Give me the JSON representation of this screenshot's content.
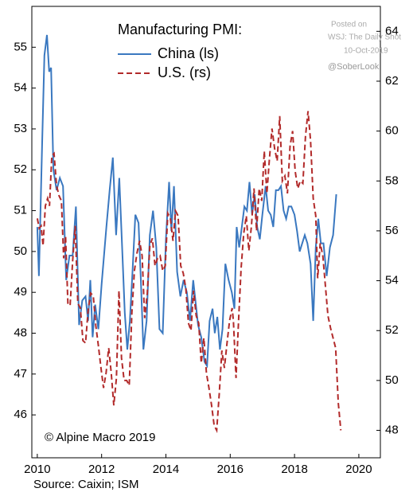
{
  "chart_data": {
    "type": "line",
    "title": "Manufacturing PMI:",
    "annotations": {
      "copyright": "© Alpine Macro 2019",
      "source": "Source: Caixin; ISM",
      "posted": "Posted on",
      "outlet": "WSJ: The Daily Shot",
      "date": "10-Oct-2019",
      "handle": "@SoberLook"
    },
    "xlim": [
      2009.83,
      2020.67
    ],
    "xticks": [
      2010,
      2012,
      2014,
      2016,
      2018,
      2020
    ],
    "ylim": [
      44.95,
      56.0
    ],
    "yticks": [
      46,
      47,
      48,
      49,
      50,
      51,
      52,
      53,
      54,
      55
    ],
    "y2lim": [
      46.9,
      65.0
    ],
    "y2ticks": [
      48,
      50,
      52,
      54,
      56,
      58,
      60,
      62,
      64
    ],
    "series": [
      {
        "name": "China (ls)",
        "color": "#3a78c0",
        "dash": false,
        "x": [
          2010.0,
          2010.05,
          2010.15,
          2010.22,
          2010.3,
          2010.37,
          2010.43,
          2010.5,
          2010.6,
          2010.7,
          2010.8,
          2010.9,
          2011.0,
          2011.1,
          2011.2,
          2011.3,
          2011.4,
          2011.5,
          2011.58,
          2011.65,
          2011.72,
          2011.8,
          2011.9,
          2012.0,
          2012.15,
          2012.25,
          2012.35,
          2012.45,
          2012.55,
          2012.65,
          2012.72,
          2012.8,
          2012.88,
          2012.96,
          2013.05,
          2013.15,
          2013.22,
          2013.3,
          2013.4,
          2013.5,
          2013.6,
          2013.7,
          2013.8,
          2013.9,
          2014.0,
          2014.1,
          2014.17,
          2014.25,
          2014.35,
          2014.45,
          2014.55,
          2014.65,
          2014.75,
          2014.85,
          2015.0,
          2015.1,
          2015.2,
          2015.28,
          2015.36,
          2015.45,
          2015.52,
          2015.6,
          2015.68,
          2015.76,
          2015.85,
          2015.95,
          2016.05,
          2016.13,
          2016.2,
          2016.28,
          2016.36,
          2016.44,
          2016.52,
          2016.6,
          2016.68,
          2016.76,
          2016.84,
          2016.92,
          2017.0,
          2017.1,
          2017.18,
          2017.26,
          2017.34,
          2017.42,
          2017.5,
          2017.58,
          2017.66,
          2017.74,
          2017.82,
          2017.9,
          2018.0,
          2018.08,
          2018.16,
          2018.24,
          2018.32,
          2018.4,
          2018.5,
          2018.58,
          2018.66,
          2018.74,
          2018.82,
          2018.9,
          2019.0,
          2019.1,
          2019.2,
          2019.3
        ],
        "values": [
          50.6,
          49.4,
          52.6,
          54.8,
          55.3,
          54.4,
          54.5,
          52.0,
          51.5,
          51.8,
          51.6,
          49.3,
          49.9,
          49.9,
          51.1,
          48.2,
          48.8,
          48.9,
          48.3,
          49.3,
          47.9,
          48.7,
          48.1,
          49.2,
          50.6,
          51.5,
          52.3,
          50.4,
          51.8,
          49.9,
          48.5,
          47.6,
          48.3,
          49.5,
          50.9,
          50.7,
          49.3,
          47.6,
          48.3,
          50.4,
          51.0,
          50.1,
          48.1,
          48.0,
          50.3,
          51.7,
          50.5,
          51.6,
          49.5,
          48.9,
          49.3,
          49.0,
          48.3,
          49.3,
          48.2,
          47.9,
          47.3,
          47.2,
          48.3,
          48.6,
          48.0,
          48.4,
          47.6,
          48.1,
          49.7,
          49.3,
          49.0,
          48.6,
          50.6,
          50.1,
          50.6,
          51.1,
          51.0,
          51.7,
          50.9,
          51.4,
          50.6,
          50.3,
          50.9,
          51.6,
          51.0,
          50.9,
          50.6,
          51.5,
          51.5,
          51.6,
          51.0,
          50.8,
          51.1,
          51.1,
          50.9,
          50.5,
          50.0,
          50.2,
          50.4,
          50.2,
          49.7,
          48.3,
          50.1,
          50.8,
          50.2,
          50.2,
          49.4,
          50.1,
          50.4,
          51.4
        ]
      },
      {
        "name": "U.S. (rs)",
        "color": "#b22a2a",
        "dash": true,
        "axis": "y2",
        "x": [
          2010.0,
          2010.06,
          2010.12,
          2010.18,
          2010.25,
          2010.32,
          2010.38,
          2010.45,
          2010.52,
          2010.6,
          2010.68,
          2010.75,
          2010.82,
          2010.88,
          2010.95,
          2011.02,
          2011.1,
          2011.18,
          2011.26,
          2011.34,
          2011.42,
          2011.5,
          2011.58,
          2011.66,
          2011.74,
          2011.82,
          2011.9,
          2011.98,
          2012.06,
          2012.14,
          2012.22,
          2012.3,
          2012.38,
          2012.46,
          2012.54,
          2012.62,
          2012.7,
          2012.78,
          2012.86,
          2012.94,
          2013.02,
          2013.1,
          2013.18,
          2013.26,
          2013.34,
          2013.42,
          2013.5,
          2013.58,
          2013.66,
          2013.74,
          2013.82,
          2013.9,
          2013.98,
          2014.06,
          2014.14,
          2014.22,
          2014.3,
          2014.38,
          2014.46,
          2014.54,
          2014.62,
          2014.7,
          2014.78,
          2014.86,
          2014.94,
          2015.02,
          2015.1,
          2015.18,
          2015.26,
          2015.34,
          2015.42,
          2015.5,
          2015.58,
          2015.66,
          2015.74,
          2015.82,
          2015.9,
          2015.98,
          2016.06,
          2016.1,
          2016.18,
          2016.26,
          2016.34,
          2016.42,
          2016.5,
          2016.58,
          2016.66,
          2016.74,
          2016.82,
          2016.9,
          2016.98,
          2017.06,
          2017.14,
          2017.22,
          2017.3,
          2017.38,
          2017.46,
          2017.54,
          2017.62,
          2017.7,
          2017.78,
          2017.86,
          2017.94,
          2018.02,
          2018.1,
          2018.18,
          2018.26,
          2018.34,
          2018.42,
          2018.5,
          2018.58,
          2018.66,
          2018.72,
          2018.8,
          2018.88,
          2018.96,
          2019.04,
          2019.12,
          2019.2,
          2019.28,
          2019.36,
          2019.44
        ],
        "values": [
          56.5,
          56.1,
          56.2,
          55.4,
          57.0,
          57.3,
          57.0,
          59.0,
          59.1,
          57.8,
          57.4,
          57.2,
          54.9,
          55.8,
          53.1,
          53.0,
          54.8,
          56.2,
          53.1,
          52.9,
          51.6,
          51.5,
          52.8,
          53.5,
          53.4,
          52.2,
          51.4,
          50.5,
          49.7,
          50.3,
          51.3,
          50.3,
          49.0,
          50.1,
          53.6,
          50.9,
          50.0,
          50.0,
          49.8,
          52.7,
          54.4,
          55.1,
          55.6,
          55.0,
          52.5,
          53.5,
          55.4,
          55.7,
          54.6,
          54.9,
          55.0,
          54.4,
          54.6,
          56.7,
          56.5,
          55.6,
          56.8,
          56.6,
          54.6,
          54.3,
          53.7,
          52.3,
          52.0,
          53.6,
          52.6,
          52.3,
          50.7,
          51.7,
          50.3,
          49.7,
          49.0,
          48.2,
          48.0,
          49.5,
          51.2,
          50.5,
          51.5,
          52.4,
          52.9,
          52.4,
          50.1,
          52.4,
          54.5,
          55.9,
          56.6,
          55.2,
          56.2,
          57.7,
          56.0,
          57.7,
          57.2,
          59.2,
          57.5,
          58.9,
          60.1,
          59.3,
          58.8,
          60.6,
          58.0,
          58.2,
          57.5,
          59.4,
          60.0,
          58.4,
          57.7,
          58.0,
          57.9,
          59.8,
          60.8,
          59.6,
          57.3,
          56.6,
          54.1,
          55.5,
          55.0,
          53.8,
          52.6,
          52.1,
          51.7,
          51.3,
          49.1,
          48.0
        ]
      }
    ]
  }
}
